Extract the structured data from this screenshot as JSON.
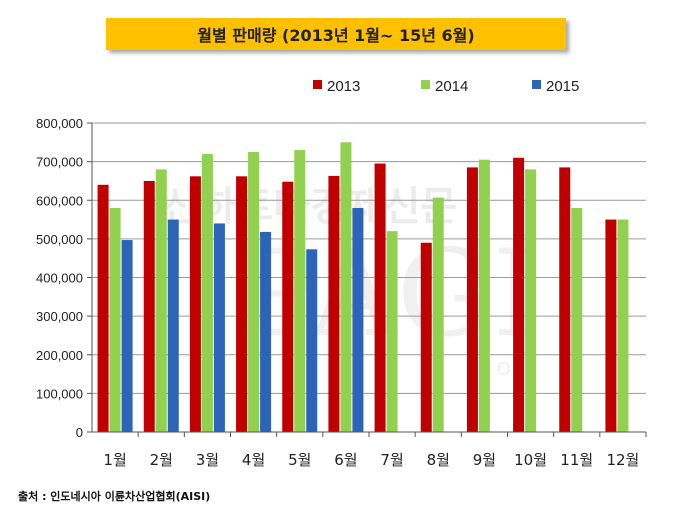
{
  "title": "월별 판매량 (2013년 1월~ 15년 6월)",
  "source": "출처 : 인도네시아 이륜차산업협회(AISI)",
  "watermark": {
    "text_top": "산하트타경제신문",
    "text_main": "PAGI",
    "text_small": ". C O . I",
    "color": "#c9c9c9"
  },
  "chart_data": {
    "type": "bar",
    "categories": [
      "1월",
      "2월",
      "3월",
      "4월",
      "5월",
      "6월",
      "7월",
      "8월",
      "9월",
      "10월",
      "11월",
      "12월"
    ],
    "series": [
      {
        "name": "2013",
        "color": "#C00000",
        "values": [
          640000,
          650000,
          662000,
          662000,
          648000,
          663000,
          695000,
          490000,
          685000,
          710000,
          685000,
          550000
        ]
      },
      {
        "name": "2014",
        "color": "#92D050",
        "values": [
          580000,
          680000,
          720000,
          725000,
          730000,
          750000,
          520000,
          607000,
          705000,
          680000,
          580000,
          550000
        ]
      },
      {
        "name": "2015",
        "color": "#2E64B8",
        "values": [
          497000,
          550000,
          540000,
          518000,
          473000,
          580000,
          null,
          null,
          null,
          null,
          null,
          null
        ]
      }
    ],
    "yticks": [
      "0",
      "100,000",
      "200,000",
      "300,000",
      "400,000",
      "500,000",
      "600,000",
      "700,000",
      "800,000"
    ],
    "ylim": [
      0,
      800000
    ],
    "grid": true,
    "legend_position": "top"
  }
}
